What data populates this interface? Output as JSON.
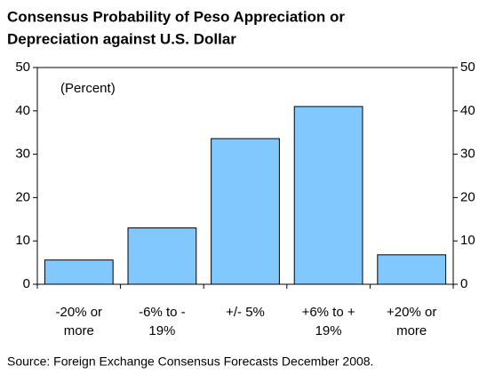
{
  "chart_data": {
    "type": "bar",
    "title": [
      "Consensus Probability of Peso Appreciation or",
      "Depreciation against U.S. Dollar"
    ],
    "annotation": "(Percent)",
    "source": "Source:  Foreign Exchange Consensus Forecasts December 2008.",
    "categories": [
      [
        "-20% or",
        "more"
      ],
      [
        "-6% to -",
        "19%"
      ],
      [
        "+/- 5%"
      ],
      [
        "+6% to +",
        "19%"
      ],
      [
        "+20% or",
        "more"
      ]
    ],
    "values": [
      5.6,
      13,
      33.6,
      41,
      6.8
    ],
    "color": "#80c8ff",
    "ylim": [
      0,
      50
    ],
    "yticks": [
      0,
      10,
      20,
      30,
      40,
      50
    ]
  }
}
